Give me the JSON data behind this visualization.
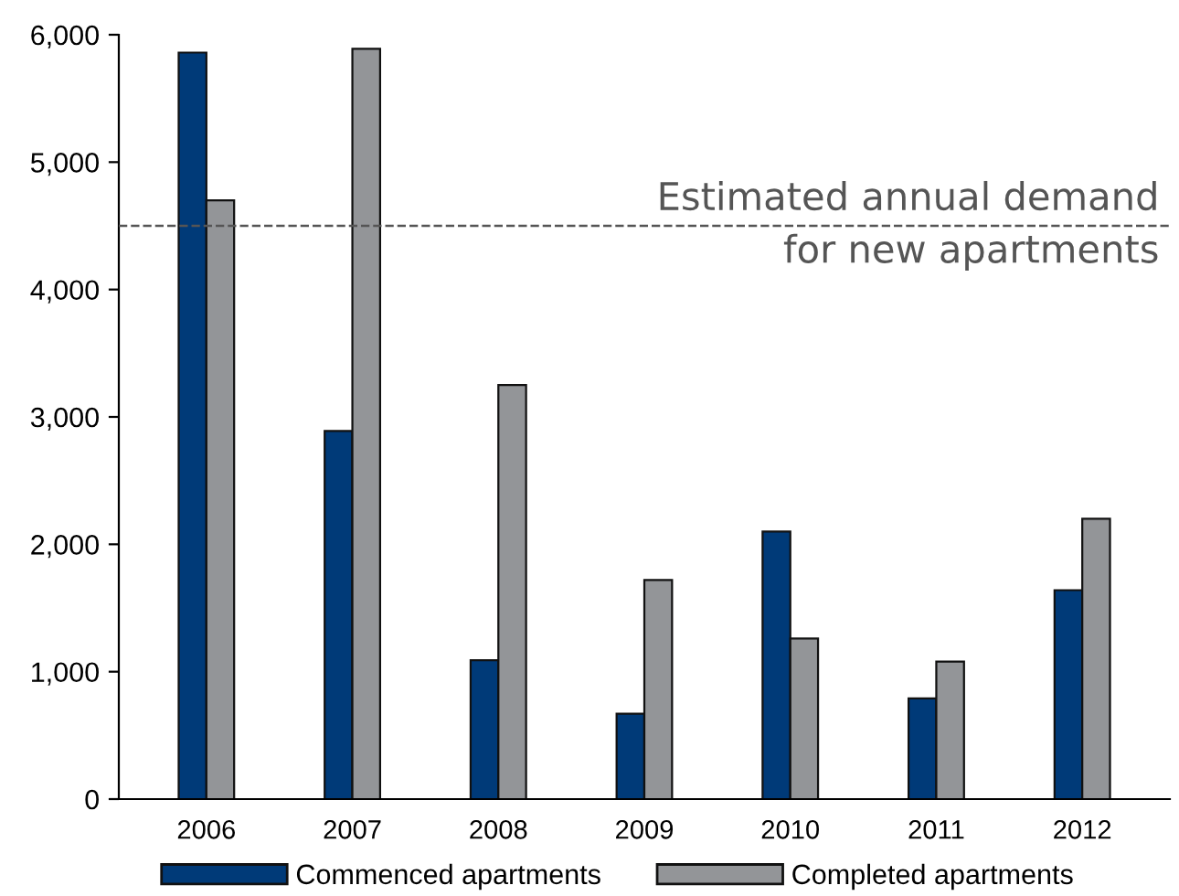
{
  "chart_data": {
    "type": "bar",
    "categories": [
      "2006",
      "2007",
      "2008",
      "2009",
      "2010",
      "2011",
      "2012"
    ],
    "series": [
      {
        "name": "Commenced apartments",
        "color": "#003a78",
        "values": [
          5860,
          2890,
          1090,
          670,
          2100,
          790,
          1640
        ]
      },
      {
        "name": "Completed apartments",
        "color": "#939598",
        "values": [
          4700,
          5890,
          3250,
          1720,
          1260,
          1080,
          2200
        ]
      }
    ],
    "ylim": [
      0,
      6000
    ],
    "yticks": [
      0,
      {
        "value": 1000,
        "label": "1,000"
      },
      {
        "value": 2000,
        "label": "2,000"
      },
      {
        "value": 3000,
        "label": "3,000"
      },
      {
        "value": 4000,
        "label": "4,000"
      },
      {
        "value": 5000,
        "label": "5,000"
      },
      {
        "value": 6000,
        "label": "6,000"
      }
    ],
    "ref_lines": [
      {
        "axis": "y",
        "value": 4500,
        "label": "Estimated annual demand\nfor new apartments",
        "color": "#555555",
        "line_style": "dashed"
      }
    ],
    "grid": false,
    "legend": "bottom"
  }
}
